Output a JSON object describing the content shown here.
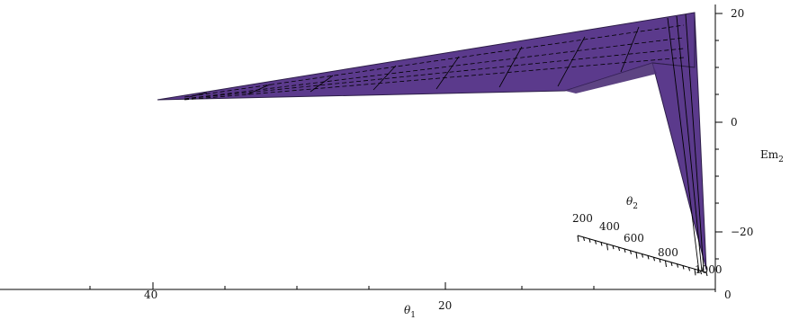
{
  "chart_data": {
    "type": "surface3d",
    "axes": {
      "x": {
        "label": "θ1",
        "ticks": [
          "40",
          "20"
        ]
      },
      "y": {
        "label": "θ2",
        "ticks": [
          "200",
          "400",
          "600",
          "800",
          "1000"
        ]
      },
      "z": {
        "label": "Em2",
        "ticks": [
          "20",
          "0",
          "−20"
        ],
        "ylim": [
          -30,
          22
        ]
      },
      "bottom_corner_tick": "0"
    },
    "surface": {
      "color": "#5b3a8c",
      "mesh_color": "#000000"
    }
  }
}
